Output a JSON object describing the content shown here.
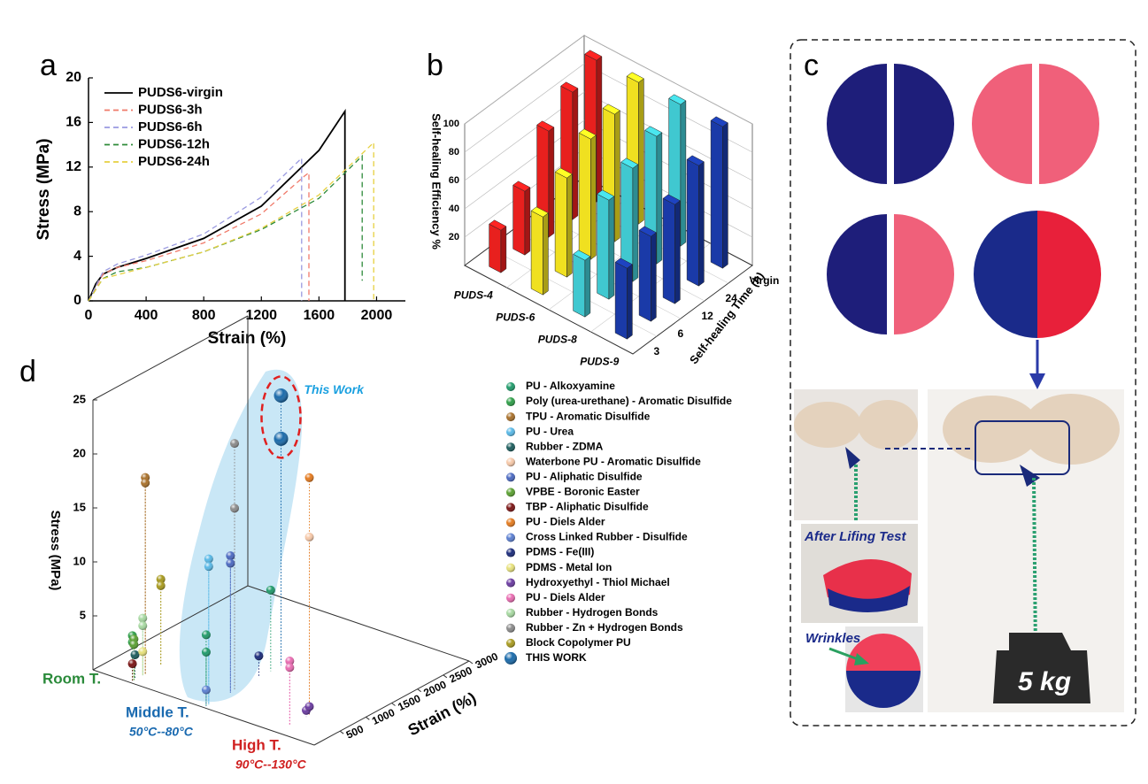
{
  "panel_labels": [
    "a",
    "b",
    "c",
    "d"
  ],
  "chart_data": [
    {
      "type": "line",
      "x_label": "Strain (%)",
      "y_label": "Stress (MPa)",
      "xlim": [
        0,
        2200
      ],
      "xticks": [
        0,
        400,
        800,
        1200,
        1600,
        2000
      ],
      "ylim": [
        0,
        20
      ],
      "yticks": [
        0,
        4,
        8,
        12,
        16,
        20
      ],
      "legend": "upper left",
      "series": [
        {
          "name": "PUDS6-virgin",
          "color": "#000000",
          "linestyle": "solid",
          "x": [
            0,
            50,
            100,
            200,
            400,
            800,
            1200,
            1600,
            1780,
            1780
          ],
          "values": [
            0,
            1.5,
            2.4,
            3.0,
            3.8,
            5.6,
            8.5,
            13.5,
            17,
            0
          ]
        },
        {
          "name": "PUDS6-3h",
          "color": "#f07a6a",
          "linestyle": "dashed",
          "x": [
            0,
            100,
            200,
            400,
            800,
            1200,
            1500,
            1530,
            1530
          ],
          "values": [
            0,
            2.4,
            3.0,
            3.6,
            5.2,
            7.8,
            11.2,
            11.5,
            0
          ]
        },
        {
          "name": "PUDS6-6h",
          "color": "#9a9ae0",
          "linestyle": "dashed",
          "x": [
            0,
            100,
            200,
            400,
            800,
            1200,
            1480,
            1480
          ],
          "values": [
            0,
            2.6,
            3.3,
            4.1,
            6.0,
            9.3,
            12.8,
            0
          ]
        },
        {
          "name": "PUDS6-12h",
          "color": "#2e8b3a",
          "linestyle": "dashed",
          "x": [
            0,
            100,
            200,
            400,
            800,
            1200,
            1600,
            1900,
            1900
          ],
          "values": [
            0,
            2.0,
            2.6,
            3.0,
            4.4,
            6.4,
            9.2,
            13.0,
            1.8
          ]
        },
        {
          "name": "PUDS6-24h",
          "color": "#e6d040",
          "linestyle": "dashed",
          "x": [
            0,
            100,
            400,
            800,
            1200,
            1600,
            1980,
            1980
          ],
          "values": [
            0,
            2.0,
            3.0,
            4.4,
            6.5,
            9.5,
            14.2,
            0
          ]
        }
      ]
    },
    {
      "type": "bar3d",
      "z_label": "Self-healing Efficiency %",
      "y_label": "Self-healing Time (h)",
      "times": [
        "3",
        "6",
        "12",
        "24",
        "Virgin"
      ],
      "zlim": [
        0,
        100
      ],
      "zticks": [
        20,
        40,
        60,
        80,
        100
      ],
      "series": [
        {
          "name": "PUDS-4",
          "color": "#e8201e",
          "values": [
            30,
            45,
            75,
            90,
            100
          ]
        },
        {
          "name": "PUDS-6",
          "color": "#f0e020",
          "values": [
            55,
            70,
            85,
            90,
            100
          ]
        },
        {
          "name": "PUDS-8",
          "color": "#40c8d0",
          "values": [
            40,
            70,
            80,
            90,
            100
          ]
        },
        {
          "name": "PUDS-9",
          "color": "#1a3aa8",
          "values": [
            50,
            60,
            70,
            85,
            100
          ]
        }
      ]
    },
    {
      "type": "scatter3d",
      "x_label": "Strain (%)",
      "y_label": "Stress (MPa)",
      "xlim": [
        0,
        3000
      ],
      "xticks": [
        500,
        1000,
        1500,
        2000,
        2500,
        3000
      ],
      "ylim": [
        0,
        25
      ],
      "yticks": [
        5,
        10,
        15,
        20,
        25
      ],
      "annotation": "This Work",
      "zones": [
        {
          "name": "Room T.",
          "color": "#2a8a3a"
        },
        {
          "name": "Middle T.",
          "range": "50°C--80°C",
          "color": "#1a6ab0"
        },
        {
          "name": "High T.",
          "range": "90°C--130°C",
          "color": "#d02020"
        }
      ],
      "series": [
        {
          "name": "PU - Alkoxyamine",
          "color": "#1f9a6a",
          "zone": "Middle T.",
          "x": [
            50,
            50,
            1300
          ],
          "values": [
            5,
            6.6,
            7.5
          ]
        },
        {
          "name": "Poly (urea-urethane) - Aromatic Disulfide",
          "color": "#2e9e48",
          "zone": "Room T.",
          "x": [
            50,
            50
          ],
          "values": [
            4.2,
            3.6
          ]
        },
        {
          "name": "TPU - Aromatic Disulfide",
          "color": "#a8702a",
          "zone": "Room T.",
          "x": [
            300,
            300
          ],
          "values": [
            18.2,
            17.7
          ]
        },
        {
          "name": "PU - Urea",
          "color": "#58b8e6",
          "zone": "Middle T.",
          "x": [
            100,
            100
          ],
          "values": [
            13.5,
            12.8
          ]
        },
        {
          "name": "Rubber - ZDMA",
          "color": "#1c5c5c",
          "zone": "Room T.",
          "x": [
            100
          ],
          "values": [
            2.3
          ]
        },
        {
          "name": "Waterbone PU - Aromatic Disulfide",
          "color": "#f6c8a8",
          "zone": "High T.",
          "x": [
            620
          ],
          "values": [
            16.5
          ]
        },
        {
          "name": "PU - Aliphatic Disulfide",
          "color": "#4a68c0",
          "zone": "Middle T.",
          "x": [
            520,
            520
          ],
          "values": [
            12.7,
            12
          ]
        },
        {
          "name": "VPBE - Boronic Easter",
          "color": "#5aa030",
          "zone": "Room T.",
          "x": [
            80,
            80
          ],
          "values": [
            3.8,
            3.3
          ]
        },
        {
          "name": "TBP - Aliphatic Disulfide",
          "color": "#7a1414",
          "zone": "Room T.",
          "x": [
            50
          ],
          "values": [
            1.6
          ]
        },
        {
          "name": "PU - Diels Alder",
          "color": "#e47a1e",
          "zone": "High T.",
          "x": [
            620
          ],
          "values": [
            22
          ]
        },
        {
          "name": "Cross Linked Rubber - Disulfide",
          "color": "#5a7ed0",
          "zone": "Middle T.",
          "x": [
            50
          ],
          "values": [
            1.5
          ]
        },
        {
          "name": "PDMS - Fe(III)",
          "color": "#1a2a7a",
          "zone": "Middle T.",
          "x": [
            1070
          ],
          "values": [
            2
          ]
        },
        {
          "name": "PDMS - Metal Ion",
          "color": "#e6e07a",
          "zone": "Room T.",
          "x": [
            250
          ],
          "values": [
            2.2
          ]
        },
        {
          "name": "Hydroxyethyl - Thiol Michael",
          "color": "#6a3aa0",
          "zone": "High T.",
          "x": [
            560,
            620
          ],
          "values": [
            0.6,
            0.8
          ]
        },
        {
          "name": "PU - Diels Alder",
          "color": "#e86ab0",
          "zone": "High T.",
          "x": [
            240,
            240
          ],
          "values": [
            6,
            5.4
          ]
        },
        {
          "name": "Rubber - Hydrogen Bonds",
          "color": "#a6d8a0",
          "zone": "Room T.",
          "x": [
            250,
            250
          ],
          "values": [
            5.3,
            4.6
          ]
        },
        {
          "name": "Rubber - Zn + Hydrogen Bonds",
          "color": "#8a8a8a",
          "zone": "Middle T.",
          "x": [
            600,
            600
          ],
          "values": [
            22.9,
            16.9
          ]
        },
        {
          "name": "Block Copolymer PU",
          "color": "#a89a1e",
          "zone": "Room T.",
          "x": [
            600,
            600
          ],
          "values": [
            8,
            7.4
          ]
        },
        {
          "name": "THIS WORK",
          "color": "#1a6aaa",
          "zone": "Middle T.",
          "x": [
            1500,
            1500
          ],
          "values": [
            25,
            21
          ]
        }
      ]
    }
  ],
  "photos": {
    "labels": [
      "After Lifing Test",
      "Wrinkles",
      "5 kg"
    ]
  }
}
